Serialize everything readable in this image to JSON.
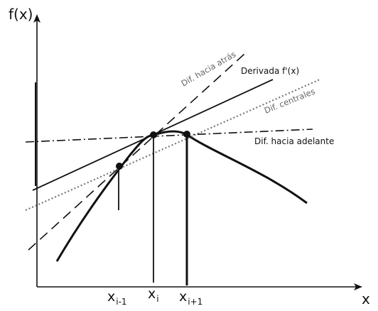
{
  "axes": {
    "y_label": "f(x)",
    "x_label": "x"
  },
  "ticks": [
    {
      "base": "x",
      "sub": "i-1"
    },
    {
      "base": "x",
      "sub": "i"
    },
    {
      "base": "x",
      "sub": "i+1"
    }
  ],
  "labels": {
    "derivative": "Derivada f'(x)",
    "backward": "Dif. hacia atrás",
    "central": "Dif. centrales",
    "forward": "Dif. hacia adelante"
  },
  "colors": {
    "line": "#111111",
    "central": "#777777"
  }
}
